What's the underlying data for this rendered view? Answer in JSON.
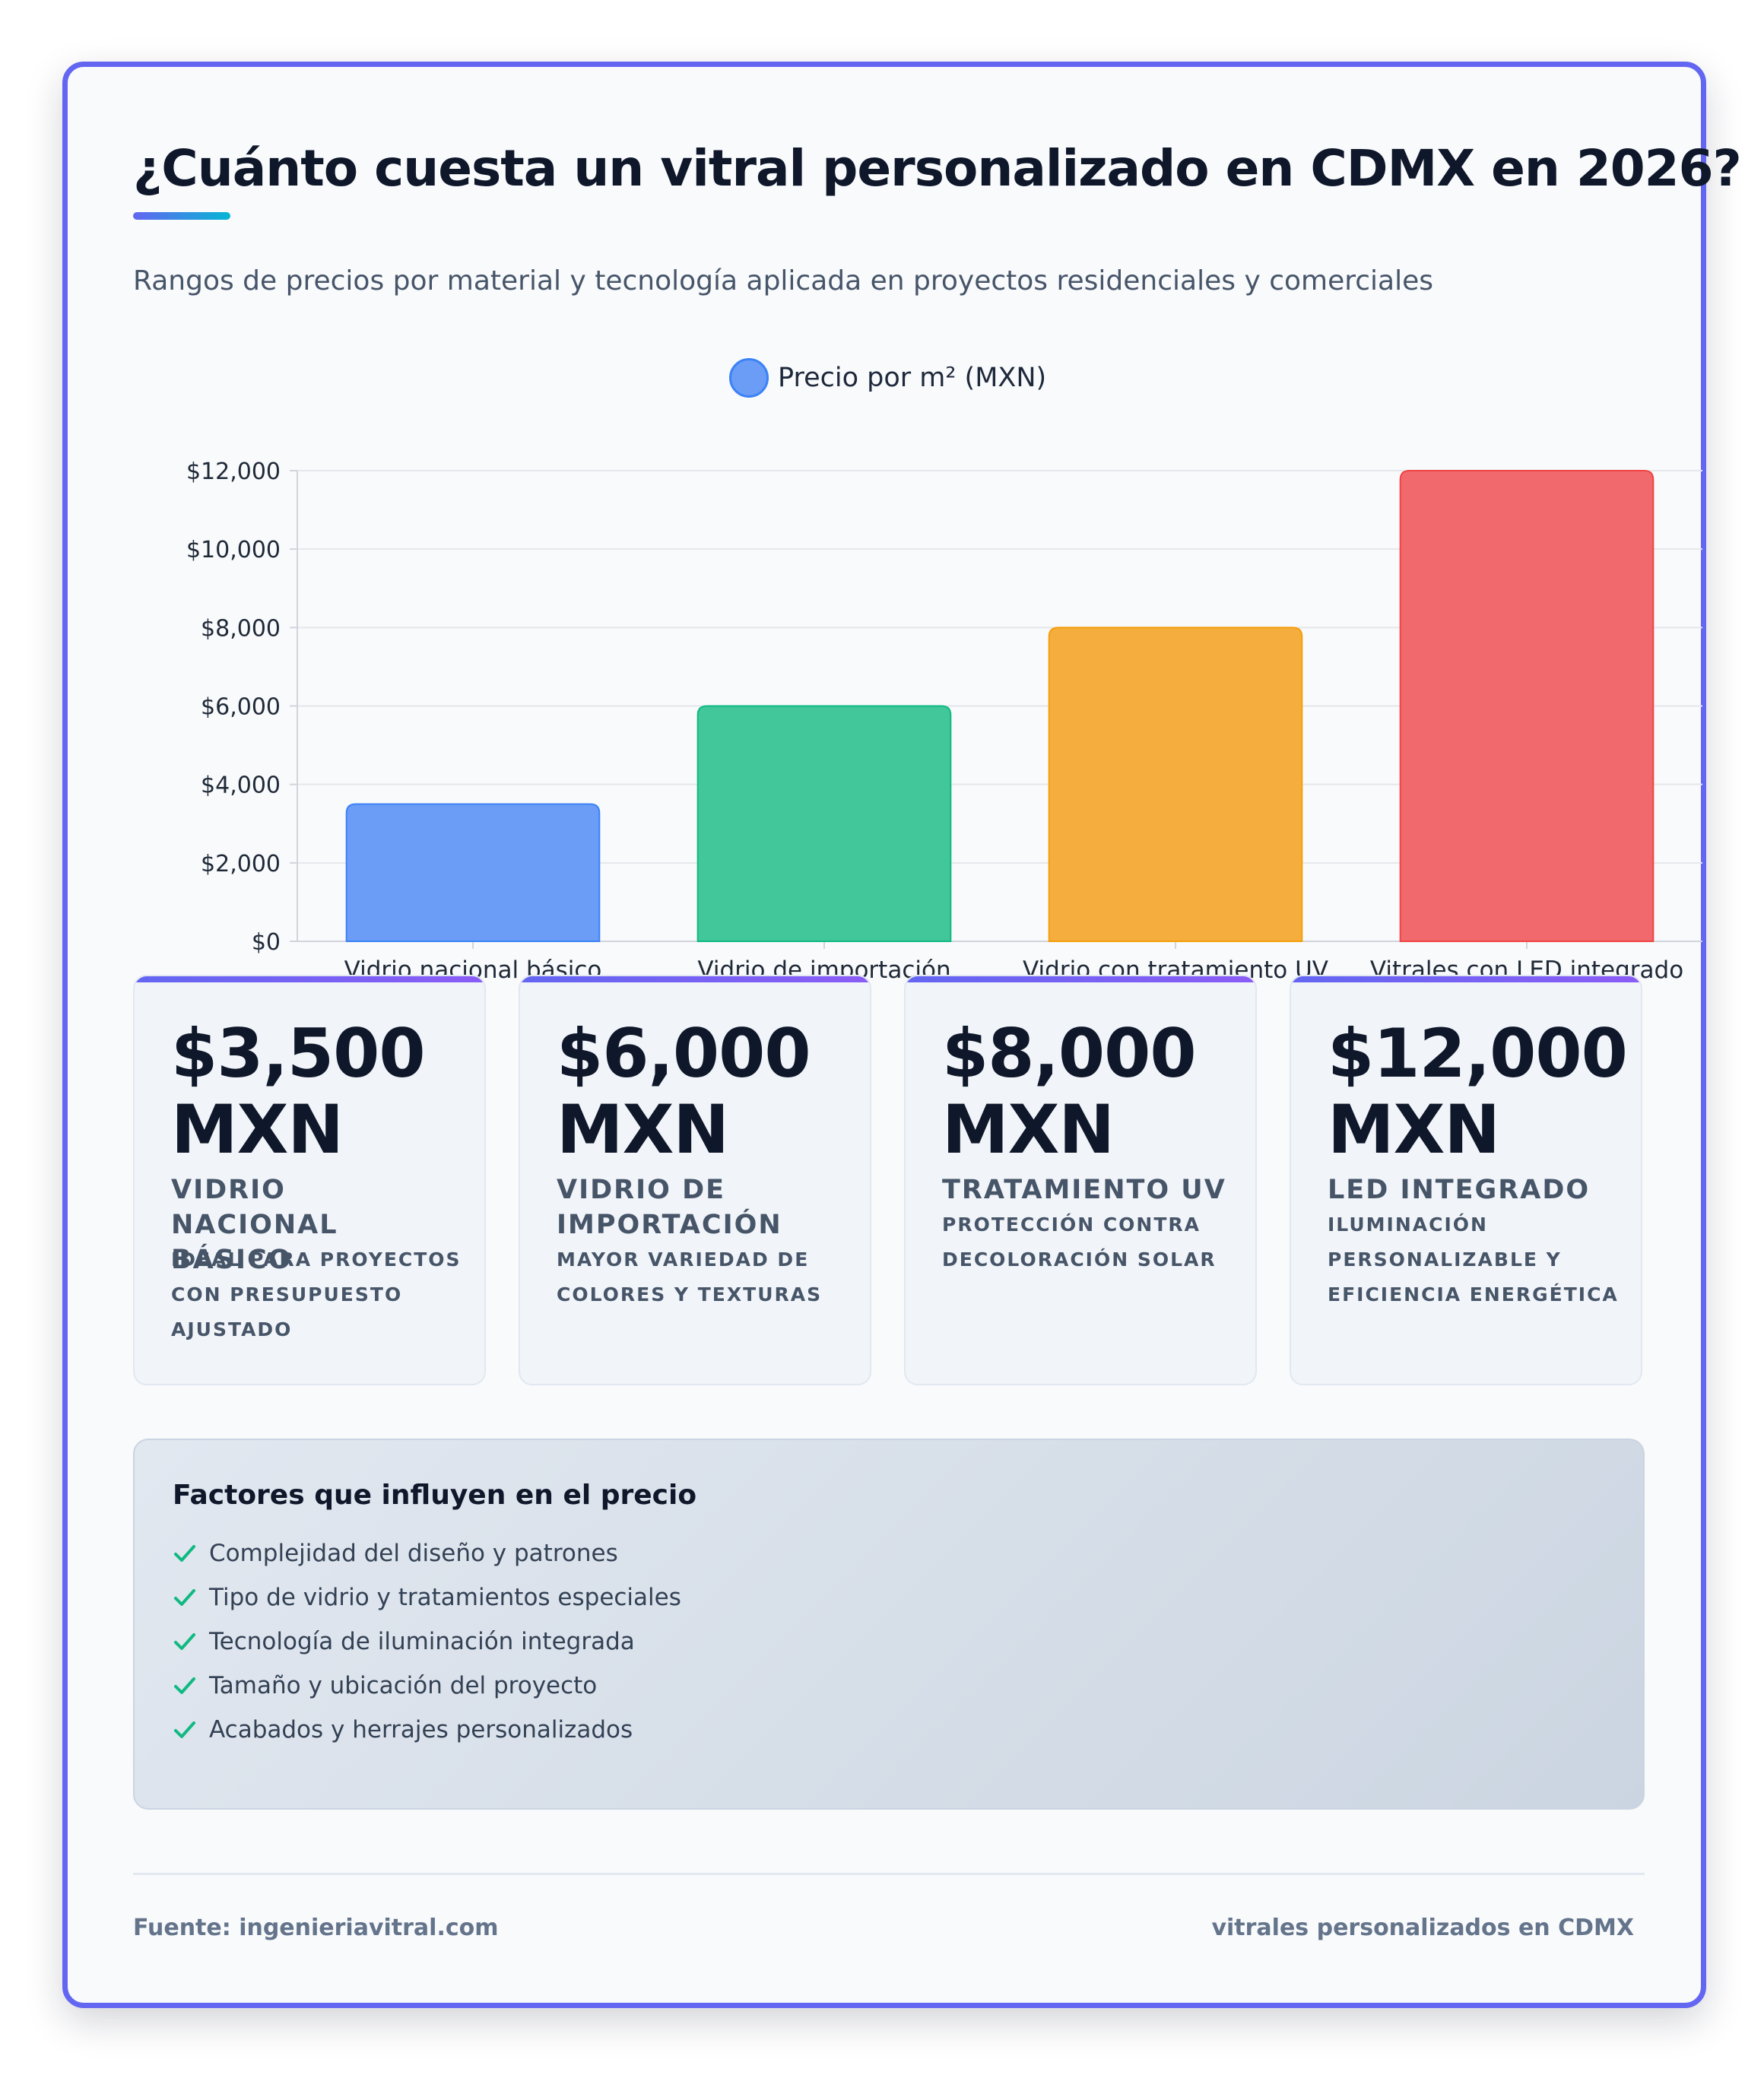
{
  "title": "¿Cuánto cuesta un vitral personalizado en CDMX en 2026?",
  "subtitle": "Rangos de precios por material y tecnología aplicada en proyectos residenciales y comerciales",
  "chart_data": {
    "type": "bar",
    "categories": [
      "Vidrio nacional básico",
      "Vidrio de importación",
      "Vidrio con tratamiento UV",
      "Vitrales con LED integrado"
    ],
    "series": [
      {
        "name": "Precio por m² (MXN)",
        "values": [
          3500,
          6000,
          8000,
          12000
        ]
      }
    ],
    "bar_colors": [
      "#6b9cf6",
      "#42c79a",
      "#f5ae3d",
      "#f2696d"
    ],
    "bar_border_colors": [
      "#3b82f6",
      "#10b981",
      "#f59e0b",
      "#ef4444"
    ],
    "ylim": [
      0,
      12000
    ],
    "yticks": [
      0,
      2000,
      4000,
      6000,
      8000,
      10000,
      12000
    ],
    "ytick_labels": [
      "$0",
      "$2,000",
      "$4,000",
      "$6,000",
      "$8,000",
      "$10,000",
      "$12,000"
    ],
    "xlabel": "",
    "ylabel": "",
    "grid": true,
    "legend": "top-center"
  },
  "cards": [
    {
      "amount": "$3,500 MXN",
      "name": "Vidrio nacional básico",
      "desc": "Ideal para proyectos con presupuesto ajustado"
    },
    {
      "amount": "$6,000 MXN",
      "name": "Vidrio de importación",
      "desc": "Mayor variedad de colores y texturas"
    },
    {
      "amount": "$8,000 MXN",
      "name": "Tratamiento UV",
      "desc": "Protección contra decoloración solar"
    },
    {
      "amount": "$12,000 MXN",
      "name": "LED integrado",
      "desc": "Iluminación personalizable y eficiencia energética"
    }
  ],
  "factors": {
    "title": "Factores que influyen en el precio",
    "check_icon": "check-icon",
    "check_color": "#10b981",
    "items": [
      "Complejidad del diseño y patrones",
      "Tipo de vidrio y tratamientos especiales",
      "Tecnología de iluminación integrada",
      "Tamaño y ubicación del proyecto",
      "Acabados y herrajes personalizados"
    ]
  },
  "footer": {
    "source": "Fuente: ingenieriavitral.com",
    "tagline": "vitrales personalizados en CDMX"
  }
}
